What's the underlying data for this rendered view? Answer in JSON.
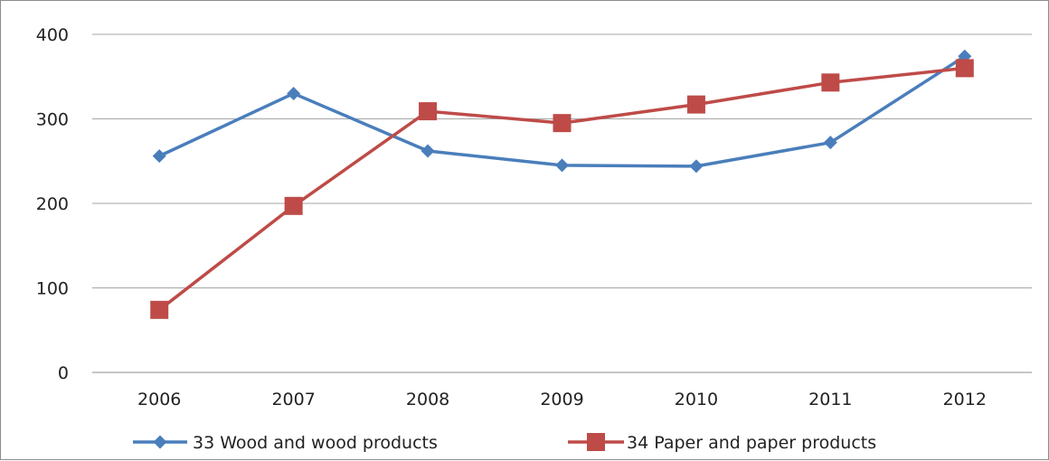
{
  "chart_data": {
    "type": "line",
    "title": "",
    "xlabel": "",
    "ylabel": "",
    "categories": [
      "2006",
      "2007",
      "2008",
      "2009",
      "2010",
      "2011",
      "2012"
    ],
    "ylim": [
      0,
      400
    ],
    "yticks": [
      "0",
      "100",
      "200",
      "300",
      "400"
    ],
    "grid": true,
    "legend_position": "bottom",
    "series": [
      {
        "name": "33 Wood and wood products",
        "color": "#4a7ebb",
        "marker": "diamond",
        "values": [
          256,
          330,
          262,
          245,
          244,
          272,
          374
        ]
      },
      {
        "name": "34 Paper and paper products",
        "color": "#be4b48",
        "marker": "square",
        "values": [
          74,
          197,
          309,
          295,
          317,
          343,
          360
        ]
      }
    ]
  }
}
